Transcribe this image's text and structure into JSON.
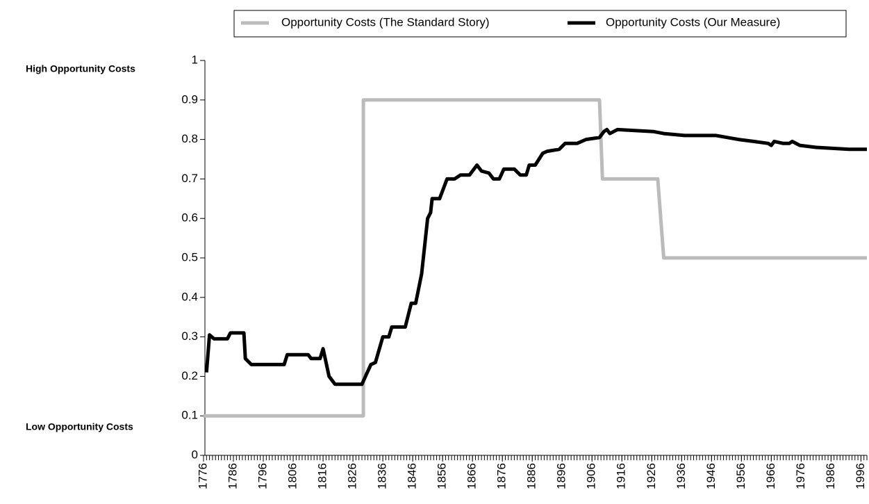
{
  "chart_data": {
    "type": "line",
    "ylabel_high": "High Opportunity Costs",
    "ylabel_low": "Low Opportunity Costs",
    "xlim": [
      1776,
      1998
    ],
    "ylim": [
      0,
      1
    ],
    "yticks": [
      0,
      0.1,
      0.2,
      0.3,
      0.4,
      0.5,
      0.6,
      0.7,
      0.8,
      0.9,
      1
    ],
    "xticks": [
      1776,
      1786,
      1796,
      1806,
      1816,
      1826,
      1836,
      1846,
      1856,
      1866,
      1876,
      1886,
      1896,
      1906,
      1916,
      1926,
      1936,
      1946,
      1956,
      1966,
      1976,
      1986,
      1996
    ],
    "xminor": [
      1776,
      1777,
      1778,
      1779,
      1780,
      1781,
      1782,
      1783,
      1784,
      1785,
      1786,
      1787,
      1788,
      1789,
      1790,
      1791,
      1792,
      1793,
      1794,
      1795,
      1796,
      1797,
      1798,
      1799,
      1800,
      1801,
      1802,
      1803,
      1804,
      1805,
      1806,
      1807,
      1808,
      1809,
      1810,
      1811,
      1812,
      1813,
      1814,
      1815,
      1816,
      1817,
      1818,
      1819,
      1820,
      1821,
      1822,
      1823,
      1824,
      1825,
      1826,
      1827,
      1828,
      1829,
      1830,
      1831,
      1832,
      1833,
      1834,
      1835,
      1836,
      1837,
      1838,
      1839,
      1840,
      1841,
      1842,
      1843,
      1844,
      1845,
      1846,
      1847,
      1848,
      1849,
      1850,
      1851,
      1852,
      1853,
      1854,
      1855,
      1856,
      1857,
      1858,
      1859,
      1860,
      1861,
      1862,
      1863,
      1864,
      1865,
      1866,
      1867,
      1868,
      1869,
      1870,
      1871,
      1872,
      1873,
      1874,
      1875,
      1876,
      1877,
      1878,
      1879,
      1880,
      1881,
      1882,
      1883,
      1884,
      1885,
      1886,
      1887,
      1888,
      1889,
      1890,
      1891,
      1892,
      1893,
      1894,
      1895,
      1896,
      1897,
      1898,
      1899,
      1900,
      1901,
      1902,
      1903,
      1904,
      1905,
      1906,
      1907,
      1908,
      1909,
      1910,
      1911,
      1912,
      1913,
      1914,
      1915,
      1916,
      1917,
      1918,
      1919,
      1920,
      1921,
      1922,
      1923,
      1924,
      1925,
      1926,
      1927,
      1928,
      1929,
      1930,
      1931,
      1932,
      1933,
      1934,
      1935,
      1936,
      1937,
      1938,
      1939,
      1940,
      1941,
      1942,
      1943,
      1944,
      1945,
      1946,
      1947,
      1948,
      1949,
      1950,
      1951,
      1952,
      1953,
      1954,
      1955,
      1956,
      1957,
      1958,
      1959,
      1960,
      1961,
      1962,
      1963,
      1964,
      1965,
      1966,
      1967,
      1968,
      1969,
      1970,
      1971,
      1972,
      1973,
      1974,
      1975,
      1976,
      1977,
      1978,
      1979,
      1980,
      1981,
      1982,
      1983,
      1984,
      1985,
      1986,
      1987,
      1988,
      1989,
      1990,
      1991,
      1992,
      1993,
      1994,
      1995,
      1996,
      1997,
      1998
    ],
    "series": [
      {
        "name": "Opportunity Costs (The Standard Story)",
        "color": "#bbbbbb",
        "x": [
          1776,
          1829.5,
          1829.5,
          1908.5,
          1909.5,
          1928,
          1930,
          1998
        ],
        "values": [
          0.1,
          0.1,
          0.9,
          0.9,
          0.7,
          0.7,
          0.5,
          0.5
        ]
      },
      {
        "name": "Opportunity Costs (Our Measure)",
        "color": "#000000",
        "x": [
          1777,
          1778,
          1779.5,
          1784,
          1785,
          1789.5,
          1790,
          1792,
          1803,
          1804,
          1811,
          1812,
          1815,
          1816,
          1818,
          1820,
          1829,
          1830.5,
          1832,
          1833.5,
          1836,
          1838,
          1839,
          1843.5,
          1845.5,
          1847,
          1849,
          1851,
          1852,
          1852.5,
          1855,
          1857.5,
          1860,
          1862,
          1865,
          1867.5,
          1869,
          1871.5,
          1873,
          1875,
          1876.5,
          1880,
          1882,
          1884,
          1885,
          1887,
          1889.5,
          1891,
          1895,
          1897,
          1901,
          1904,
          1908.5,
          1910,
          1911,
          1912,
          1914.5,
          1926.5,
          1930,
          1937,
          1947.5,
          1955,
          1960,
          1965,
          1966,
          1967,
          1970,
          1972,
          1973,
          1975.5,
          1981,
          1992,
          1998
        ],
        "values": [
          0.21,
          0.305,
          0.295,
          0.295,
          0.31,
          0.31,
          0.245,
          0.23,
          0.23,
          0.255,
          0.255,
          0.245,
          0.245,
          0.27,
          0.2,
          0.18,
          0.18,
          0.205,
          0.23,
          0.235,
          0.3,
          0.3,
          0.325,
          0.325,
          0.385,
          0.385,
          0.46,
          0.6,
          0.615,
          0.65,
          0.65,
          0.7,
          0.7,
          0.71,
          0.71,
          0.735,
          0.72,
          0.715,
          0.7,
          0.7,
          0.725,
          0.725,
          0.71,
          0.71,
          0.735,
          0.735,
          0.765,
          0.77,
          0.775,
          0.79,
          0.79,
          0.8,
          0.805,
          0.82,
          0.825,
          0.815,
          0.825,
          0.82,
          0.815,
          0.81,
          0.81,
          0.8,
          0.795,
          0.79,
          0.785,
          0.795,
          0.79,
          0.79,
          0.795,
          0.785,
          0.78,
          0.775,
          0.775
        ]
      }
    ]
  }
}
